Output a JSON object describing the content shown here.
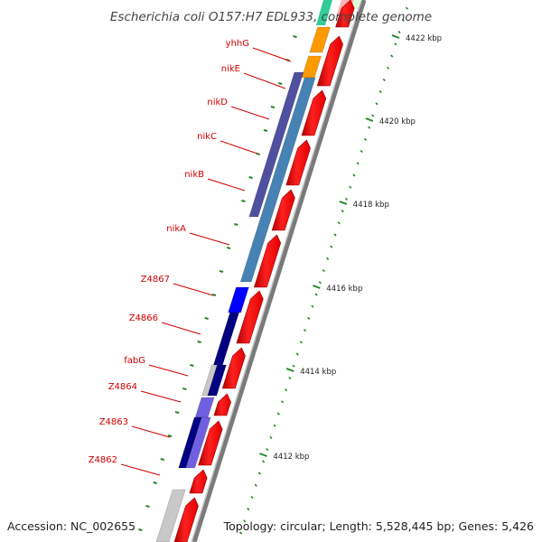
{
  "title": "Escherichia coli O157:H7 EDL933, complete genome",
  "footer": {
    "accession": "Accession: NC_002655",
    "summary": "Topology: circular; Length: 5,528,445 bp; Genes: 5,426"
  },
  "genes": [
    {
      "name": "yhhG"
    },
    {
      "name": "nikE"
    },
    {
      "name": "nikD"
    },
    {
      "name": "nikC"
    },
    {
      "name": "nikB"
    },
    {
      "name": "nikA"
    },
    {
      "name": "Z4867"
    },
    {
      "name": "Z4866"
    },
    {
      "name": "fabG"
    },
    {
      "name": "Z4864"
    },
    {
      "name": "Z4863"
    },
    {
      "name": "Z4862"
    }
  ],
  "ticks": [
    {
      "label": "4422 kbp"
    },
    {
      "label": "4420 kbp"
    },
    {
      "label": "4418 kbp"
    },
    {
      "label": "4416 kbp"
    },
    {
      "label": "4414 kbp"
    },
    {
      "label": "4412 kbp"
    }
  ],
  "colors": {
    "forward": "#ff0000",
    "backbone": "#888888",
    "ticks": "#228822",
    "labels": "#d00000",
    "orange": "#ff9900",
    "slate": "#5050a0",
    "steelblue": "#4682b4",
    "blue": "#0000ff",
    "navy": "#000080",
    "mediumslate": "#7060e0",
    "lightgray": "#c8c8c8"
  }
}
